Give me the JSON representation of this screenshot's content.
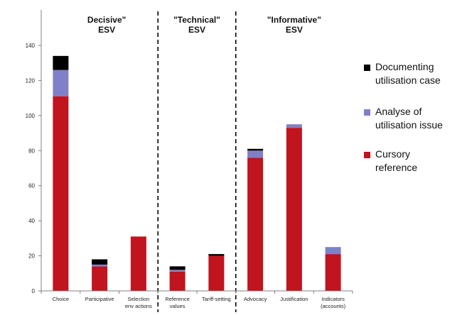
{
  "chart_data": {
    "type": "bar",
    "stacked": true,
    "categories": [
      "Choice",
      "Participative",
      "Selection\nenv actions",
      "Reference\nvalues",
      "Tariff-setting",
      "Advocacy",
      "Justification",
      "Indicators\n(accounts)"
    ],
    "series": [
      {
        "name": "Cursory\nreference",
        "color": "#c0141e",
        "values": [
          111,
          14,
          31,
          11,
          20,
          76,
          93,
          21
        ]
      },
      {
        "name": "Analyse of\nutilisation issue",
        "color": "#8080c8",
        "values": [
          15,
          1,
          0,
          1,
          0,
          4,
          2,
          4
        ]
      },
      {
        "name": "Documenting\nutilisation case",
        "color": "#000000",
        "values": [
          8,
          3,
          0,
          2,
          1,
          1,
          0,
          0
        ]
      }
    ],
    "ylim": [
      0,
      140
    ],
    "yticks": [
      0,
      20,
      40,
      60,
      80,
      100,
      120,
      140
    ],
    "groups": [
      {
        "label": "Decisive\"\nESV",
        "categories": [
          0,
          1,
          2
        ]
      },
      {
        "label": "\"Technical\"\nESV",
        "categories": [
          3,
          4
        ]
      },
      {
        "label": "\"Informative\"\nESV",
        "categories": [
          5,
          6,
          7
        ]
      }
    ],
    "legend_order": [
      2,
      1,
      0
    ],
    "legend_position": "right",
    "grid": false
  }
}
